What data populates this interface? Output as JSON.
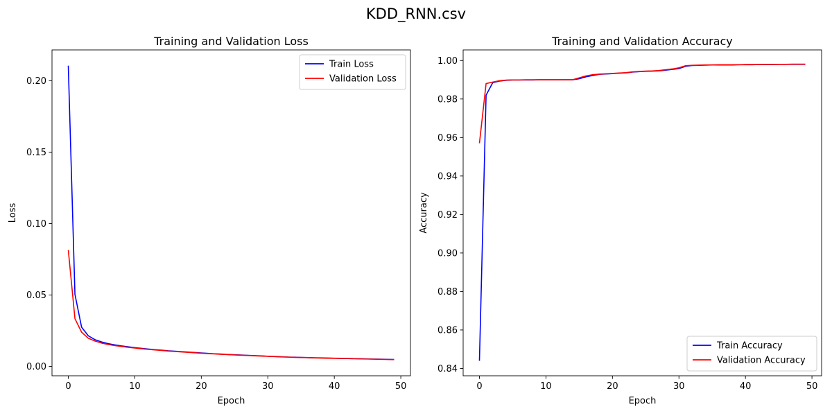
{
  "figure": {
    "suptitle": "KDD_RNN.csv"
  },
  "colors": {
    "train": "#0000ff",
    "validation": "#ff0000"
  },
  "chart_data": [
    {
      "type": "line",
      "title": "Training and Validation Loss",
      "xlabel": "Epoch",
      "ylabel": "Loss",
      "xlim": [
        -2.45,
        51.45
      ],
      "ylim": [
        -0.0065,
        0.2215
      ],
      "xticks": [
        0,
        10,
        20,
        30,
        40,
        50
      ],
      "yticks": [
        0.0,
        0.05,
        0.1,
        0.15,
        0.2
      ],
      "ytick_labels": [
        "0.00",
        "0.05",
        "0.10",
        "0.15",
        "0.20"
      ],
      "legend_position": "upper right",
      "grid": false,
      "x": [
        0,
        1,
        2,
        3,
        4,
        5,
        6,
        7,
        8,
        9,
        10,
        11,
        12,
        13,
        14,
        15,
        16,
        17,
        18,
        19,
        20,
        21,
        22,
        23,
        24,
        25,
        26,
        27,
        28,
        29,
        30,
        31,
        32,
        33,
        34,
        35,
        36,
        37,
        38,
        39,
        40,
        41,
        42,
        43,
        44,
        45,
        46,
        47,
        48,
        49
      ],
      "series": [
        {
          "name": "Train Loss",
          "color": "#0000ff",
          "values": [
            0.2105,
            0.0505,
            0.0275,
            0.0215,
            0.0188,
            0.0172,
            0.016,
            0.0151,
            0.0144,
            0.0138,
            0.0132,
            0.0127,
            0.0122,
            0.0118,
            0.0114,
            0.011,
            0.0107,
            0.0104,
            0.0101,
            0.0098,
            0.0095,
            0.0092,
            0.0089,
            0.0087,
            0.0084,
            0.0082,
            0.008,
            0.0078,
            0.0076,
            0.0074,
            0.0072,
            0.007,
            0.0068,
            0.0066,
            0.0065,
            0.0063,
            0.0062,
            0.0061,
            0.006,
            0.0059,
            0.0058,
            0.0057,
            0.0056,
            0.0055,
            0.0054,
            0.0053,
            0.0052,
            0.0051,
            0.005,
            0.0049
          ]
        },
        {
          "name": "Validation Loss",
          "color": "#ff0000",
          "values": [
            0.0815,
            0.0335,
            0.024,
            0.0198,
            0.0178,
            0.0164,
            0.0154,
            0.0146,
            0.014,
            0.0134,
            0.0129,
            0.0124,
            0.012,
            0.0116,
            0.0112,
            0.0108,
            0.0105,
            0.0102,
            0.0099,
            0.0096,
            0.0093,
            0.009,
            0.0088,
            0.0085,
            0.0083,
            0.0081,
            0.0079,
            0.0077,
            0.0075,
            0.0073,
            0.0071,
            0.0069,
            0.0067,
            0.0066,
            0.0064,
            0.0063,
            0.0062,
            0.006,
            0.0059,
            0.0058,
            0.0057,
            0.0056,
            0.0055,
            0.0054,
            0.0053,
            0.0052,
            0.0051,
            0.005,
            0.0049,
            0.0048
          ]
        }
      ]
    },
    {
      "type": "line",
      "title": "Training and Validation Accuracy",
      "xlabel": "Epoch",
      "ylabel": "Accuracy",
      "xlim": [
        -2.45,
        51.45
      ],
      "ylim": [
        0.8362,
        1.0055
      ],
      "xticks": [
        0,
        10,
        20,
        30,
        40,
        50
      ],
      "yticks": [
        0.84,
        0.86,
        0.88,
        0.9,
        0.92,
        0.94,
        0.96,
        0.98,
        1.0
      ],
      "ytick_labels": [
        "0.84",
        "0.86",
        "0.88",
        "0.90",
        "0.92",
        "0.94",
        "0.96",
        "0.98",
        "1.00"
      ],
      "legend_position": "lower right",
      "grid": false,
      "x": [
        0,
        1,
        2,
        3,
        4,
        5,
        6,
        7,
        8,
        9,
        10,
        11,
        12,
        13,
        14,
        15,
        16,
        17,
        18,
        19,
        20,
        21,
        22,
        23,
        24,
        25,
        26,
        27,
        28,
        29,
        30,
        31,
        32,
        33,
        34,
        35,
        36,
        37,
        38,
        39,
        40,
        41,
        42,
        43,
        44,
        45,
        46,
        47,
        48,
        49
      ],
      "series": [
        {
          "name": "Train Accuracy",
          "color": "#0000ff",
          "values": [
            0.844,
            0.982,
            0.9885,
            0.9893,
            0.9897,
            0.9899,
            0.9899,
            0.9899,
            0.9899,
            0.99,
            0.99,
            0.99,
            0.99,
            0.99,
            0.99,
            0.9905,
            0.9915,
            0.9922,
            0.9928,
            0.993,
            0.9932,
            0.9934,
            0.9936,
            0.994,
            0.9942,
            0.9944,
            0.9945,
            0.9946,
            0.995,
            0.9954,
            0.9958,
            0.997,
            0.9974,
            0.9975,
            0.9976,
            0.9977,
            0.9977,
            0.9977,
            0.9977,
            0.9978,
            0.9978,
            0.9978,
            0.9979,
            0.9979,
            0.9979,
            0.998,
            0.998,
            0.998,
            0.998,
            0.998
          ]
        },
        {
          "name": "Validation Accuracy",
          "color": "#ff0000",
          "values": [
            0.957,
            0.988,
            0.9888,
            0.9895,
            0.9898,
            0.9899,
            0.9899,
            0.99,
            0.99,
            0.99,
            0.99,
            0.99,
            0.99,
            0.99,
            0.99,
            0.991,
            0.992,
            0.9926,
            0.9929,
            0.9931,
            0.9933,
            0.9935,
            0.9937,
            0.9941,
            0.9943,
            0.9945,
            0.9946,
            0.9948,
            0.9952,
            0.9956,
            0.9962,
            0.9973,
            0.9975,
            0.9976,
            0.9977,
            0.9977,
            0.9978,
            0.9978,
            0.9978,
            0.9978,
            0.9979,
            0.9979,
            0.9979,
            0.998,
            0.998,
            0.998,
            0.998,
            0.9981,
            0.9981,
            0.9981
          ]
        }
      ]
    }
  ]
}
